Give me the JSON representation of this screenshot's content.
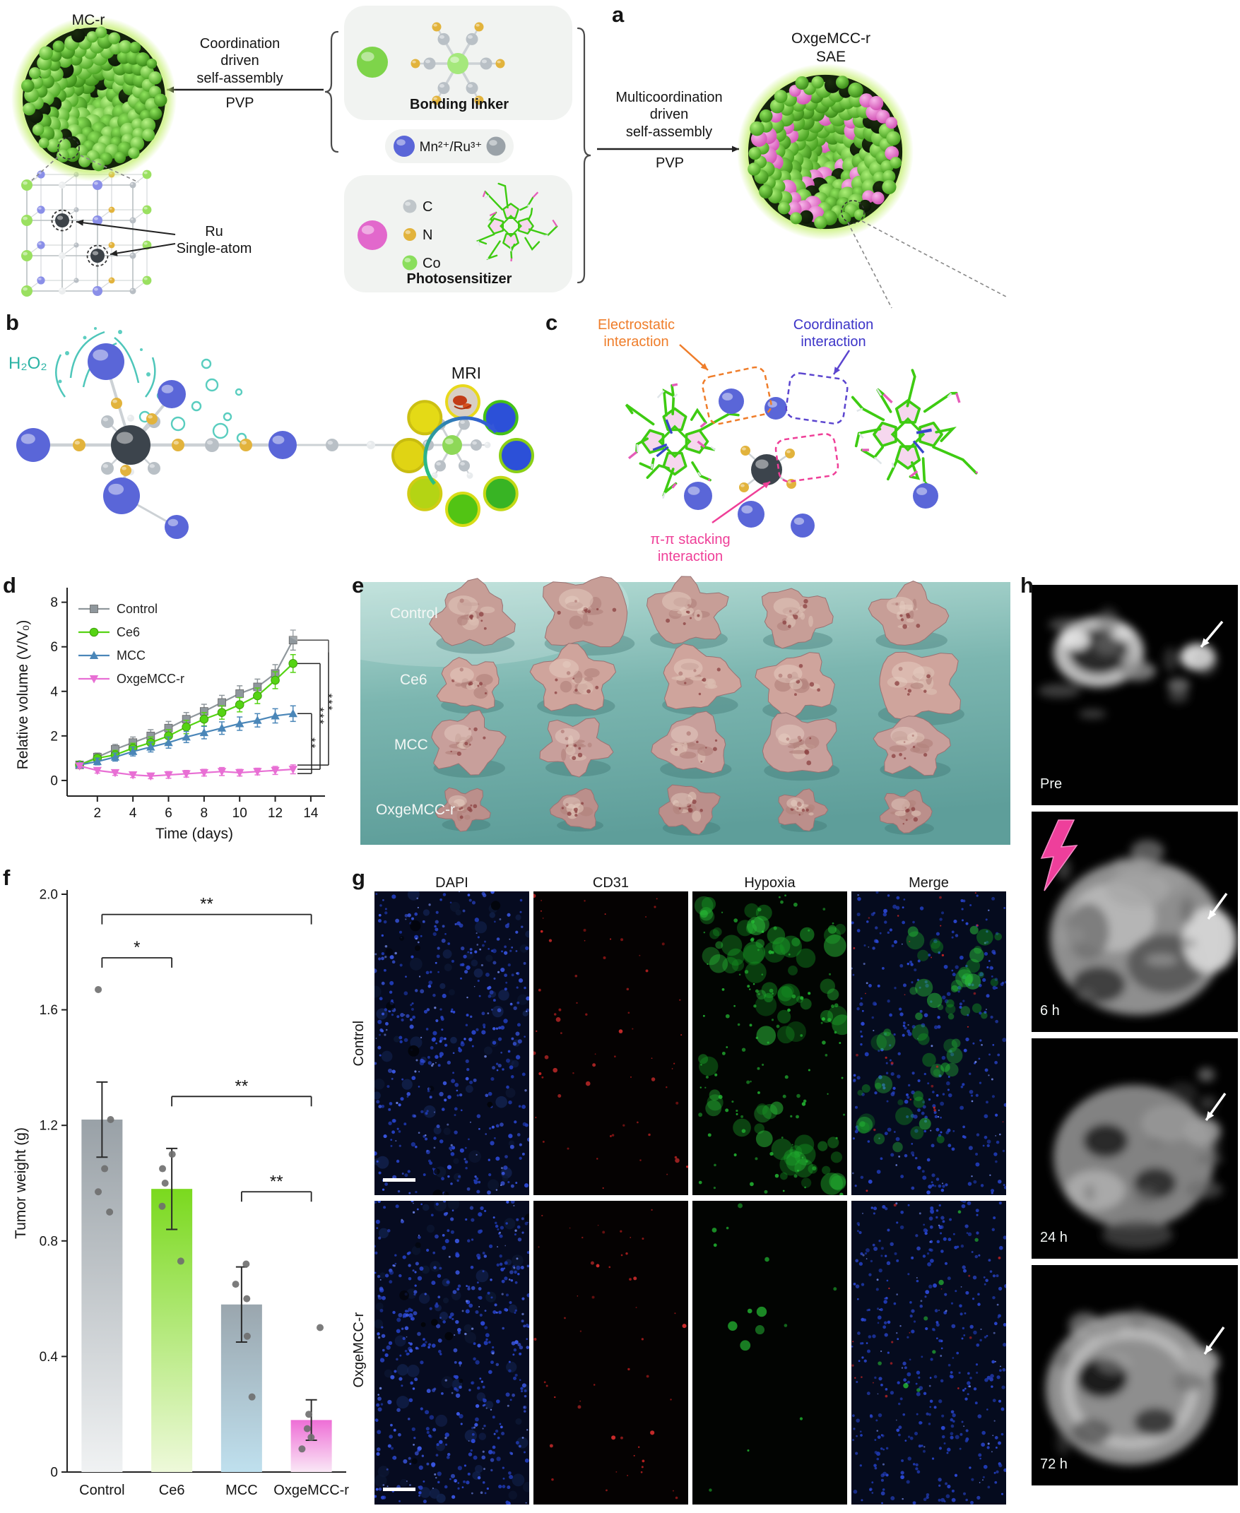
{
  "panels": {
    "a": "a",
    "b": "b",
    "c": "c",
    "d": "d",
    "e": "e",
    "f": "f",
    "g": "g",
    "h": "h"
  },
  "panel_a": {
    "mc_r_label": "MC-r",
    "left_process": "Coordination\ndriven\nself-assembly",
    "left_pvp": "PVP",
    "bonding_linker_label": "Bonding linker",
    "ions_label": "Mn²⁺/Ru³⁺",
    "photosensitizer_label": "Photosensitizer",
    "ru_label": "Ru\nSingle-atom",
    "right_process": "Multicoordination\ndriven\nself-assembly",
    "right_pvp": "PVP",
    "product_label": "OxgeMCC-r\nSAE",
    "atom_legend": [
      {
        "symbol": "C",
        "color": "#c0c6ca"
      },
      {
        "symbol": "N",
        "color": "#e2b33c"
      },
      {
        "symbol": "Co",
        "color": "#8ade5c"
      }
    ]
  },
  "panel_b": {
    "h2o2_label": "H₂O₂",
    "mri_label": "MRI"
  },
  "panel_c": {
    "electrostatic_label": "Electrostatic\ninteraction",
    "coordination_label": "Coordination\ninteraction",
    "pi_stacking_label": "π-π stacking\ninteraction"
  },
  "panel_e": {
    "row_labels": [
      "Control",
      "Ce6",
      "MCC",
      "OxgeMCC-r"
    ]
  },
  "panel_g": {
    "col_headers": [
      "DAPI",
      "CD31",
      "Hypoxia",
      "Merge"
    ],
    "row_labels": [
      "Control",
      "OxgeMCC-r"
    ]
  },
  "panel_h": {
    "time_labels": [
      "Pre",
      "6 h",
      "24 h",
      "72 h"
    ]
  },
  "chart_data": [
    {
      "type": "line",
      "xlabel": "Time (days)",
      "ylabel": "Relative volume (V/V₀)",
      "xlim": [
        0.3,
        14.6
      ],
      "ylim": [
        -0.7,
        8.4
      ],
      "xticks": [
        2,
        4,
        6,
        8,
        10,
        12,
        14
      ],
      "yticks": [
        0,
        2,
        4,
        6,
        8
      ],
      "x": [
        1,
        2,
        3,
        4,
        5,
        6,
        7,
        8,
        9,
        10,
        11,
        12,
        13
      ],
      "series": [
        {
          "name": "Control",
          "marker": "square",
          "color": "#8f979c",
          "values": [
            0.7,
            1.05,
            1.4,
            1.7,
            2.0,
            2.35,
            2.75,
            3.1,
            3.5,
            3.9,
            4.2,
            4.8,
            6.3
          ],
          "errors": [
            0.12,
            0.18,
            0.22,
            0.25,
            0.28,
            0.3,
            0.3,
            0.32,
            0.32,
            0.35,
            0.35,
            0.4,
            0.45
          ]
        },
        {
          "name": "Ce6",
          "marker": "circle",
          "color": "#55d313",
          "values": [
            0.7,
            1.0,
            1.15,
            1.45,
            1.7,
            2.0,
            2.4,
            2.75,
            3.05,
            3.4,
            3.8,
            4.5,
            5.25
          ],
          "errors": [
            0.12,
            0.15,
            0.2,
            0.22,
            0.25,
            0.28,
            0.3,
            0.3,
            0.3,
            0.32,
            0.35,
            0.38,
            0.4
          ]
        },
        {
          "name": "MCC",
          "marker": "triangle-up",
          "color": "#4a86b8",
          "values": [
            0.7,
            0.85,
            1.05,
            1.3,
            1.5,
            1.7,
            1.95,
            2.15,
            2.35,
            2.55,
            2.7,
            2.9,
            3.0
          ],
          "errors": [
            0.1,
            0.15,
            0.18,
            0.2,
            0.22,
            0.25,
            0.25,
            0.28,
            0.28,
            0.3,
            0.3,
            0.32,
            0.35
          ]
        },
        {
          "name": "OxgeMCC-r",
          "marker": "triangle-down",
          "color": "#e86fd4",
          "values": [
            0.65,
            0.45,
            0.35,
            0.25,
            0.2,
            0.25,
            0.3,
            0.35,
            0.4,
            0.35,
            0.4,
            0.45,
            0.5
          ],
          "errors": [
            0.1,
            0.12,
            0.12,
            0.12,
            0.12,
            0.15,
            0.15,
            0.15,
            0.18,
            0.15,
            0.15,
            0.18,
            0.2
          ]
        }
      ],
      "significance": [
        {
          "from": "Control",
          "to": "OxgeMCC-r",
          "label": "***"
        },
        {
          "from": "Ce6",
          "to": "OxgeMCC-r",
          "label": "***"
        },
        {
          "from": "MCC",
          "to": "OxgeMCC-r",
          "label": "**"
        }
      ]
    },
    {
      "type": "bar",
      "ylabel": "Tumor weight (g)",
      "ylim": [
        0,
        2.0
      ],
      "yticks": [
        0,
        0.4,
        0.8,
        1.2,
        1.6,
        2.0
      ],
      "categories": [
        "Control",
        "Ce6",
        "MCC",
        "OxgeMCC-r"
      ],
      "values": [
        1.22,
        0.98,
        0.58,
        0.18
      ],
      "errors": [
        0.13,
        0.14,
        0.13,
        0.07
      ],
      "points": [
        [
          1.67,
          1.22,
          1.05,
          0.97,
          0.9
        ],
        [
          1.1,
          1.05,
          1.0,
          0.92,
          0.73
        ],
        [
          0.72,
          0.65,
          0.6,
          0.47,
          0.26
        ],
        [
          0.5,
          0.2,
          0.15,
          0.12,
          0.08
        ]
      ],
      "bar_gradient_top": [
        "#99a1a7",
        "#7ad91e",
        "#9aa6ae",
        "#ee6ed6"
      ],
      "bar_gradient_bottom": [
        "#f0f2f3",
        "#eef9da",
        "#bfe0ee",
        "#fae8f6"
      ],
      "point_color": "#6e6e6e",
      "significance": [
        {
          "a": 0,
          "b": 3,
          "label": "**",
          "y": 1.93
        },
        {
          "a": 0,
          "b": 1,
          "label": "*",
          "y": 1.78
        },
        {
          "a": 1,
          "b": 3,
          "label": "**",
          "y": 1.3
        },
        {
          "a": 2,
          "b": 3,
          "label": "**",
          "y": 0.97
        }
      ]
    }
  ]
}
